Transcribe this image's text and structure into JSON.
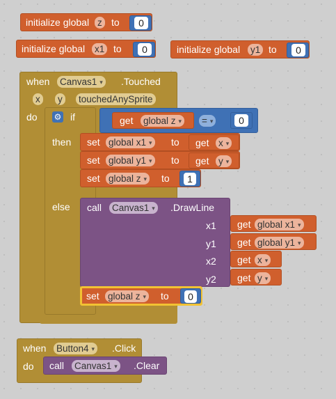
{
  "globals": [
    {
      "label": "initialize global",
      "var": "z",
      "to": "to",
      "value": "0"
    },
    {
      "label": "initialize global",
      "var": "x1",
      "to": "to",
      "value": "0"
    },
    {
      "label": "initialize global",
      "var": "y1",
      "to": "to",
      "value": "0"
    }
  ],
  "touched": {
    "when": "when",
    "component": "Canvas1",
    "event": ".Touched",
    "params": [
      "x",
      "y",
      "touchedAnySprite"
    ],
    "do": "do",
    "if": "if",
    "then": "then",
    "else": "else",
    "cond_get": "get",
    "cond_var": "global z",
    "cond_op": "=",
    "cond_value": "0",
    "set": "set",
    "to": "to",
    "get": "get",
    "set1_var": "global x1",
    "set1_val": "x",
    "set2_var": "global y1",
    "set2_val": "y",
    "set3_var": "global z",
    "set3_value": "1",
    "call": "call",
    "call_component": "Canvas1",
    "call_method": ".DrawLine",
    "args": [
      {
        "name": "x1",
        "var": "global x1"
      },
      {
        "name": "y1",
        "var": "global y1"
      },
      {
        "name": "x2",
        "var": "x"
      },
      {
        "name": "y2",
        "var": "y"
      }
    ],
    "set4_var": "global z",
    "set4_value": "0"
  },
  "click": {
    "when": "when",
    "component": "Button4",
    "event": ".Click",
    "do": "do",
    "call": "call",
    "call_component": "Canvas1",
    "call_method": ".Clear"
  },
  "dropdown_arrow": "▾",
  "colors": {
    "variables": "#d05f2d",
    "events": "#b18e35",
    "math": "#3f71b5",
    "canvas": "#7c5385",
    "control": "#b18e35"
  }
}
